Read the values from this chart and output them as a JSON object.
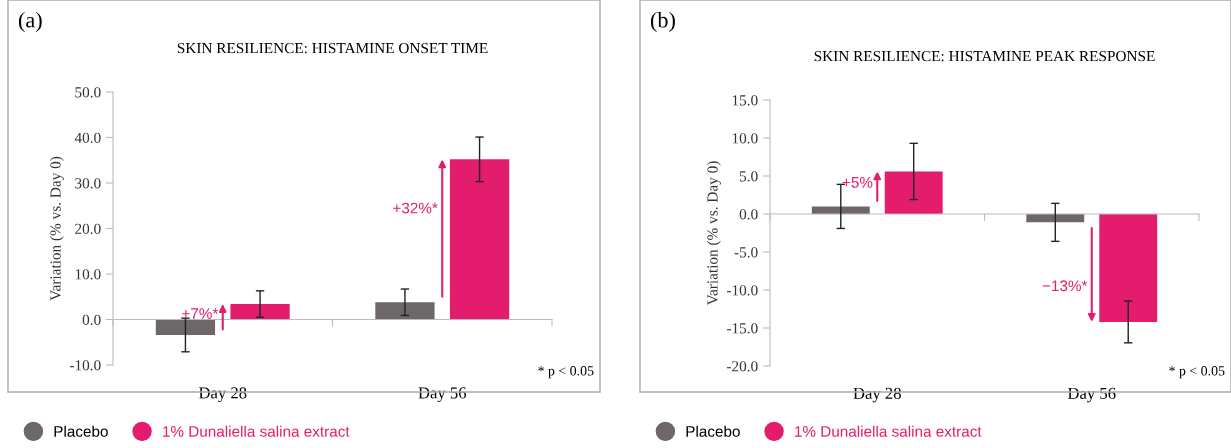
{
  "chart_data": [
    {
      "type": "bar",
      "title": "SKIN RESILIENCE: HISTAMINE ONSET TIME",
      "ylabel": "Variation (% vs. Day 0)",
      "categories": [
        "Day 28",
        "Day 56"
      ],
      "series": [
        {
          "name": "Placebo",
          "color": "#6d6767",
          "values": [
            -3.4,
            3.8
          ],
          "errors": [
            3.7,
            2.9
          ]
        },
        {
          "name": "1% Dunaliella salina extract",
          "color": "#e31c6e",
          "values": [
            3.4,
            35.2
          ],
          "errors": [
            2.9,
            4.9
          ]
        }
      ],
      "ylim": [
        -10,
        50
      ],
      "yticks": [
        {
          "value": -10,
          "label": "-10.0"
        },
        {
          "value": 0,
          "label": "0.0"
        },
        {
          "value": 10,
          "label": "10.0"
        },
        {
          "value": 20,
          "label": "20.0"
        },
        {
          "value": 30,
          "label": "30.0"
        },
        {
          "value": 40,
          "label": "40.0"
        },
        {
          "value": 50,
          "label": "50.0"
        }
      ],
      "annotations": [
        "(a)",
        "+7%*",
        "+32%*",
        "* p < 0.05"
      ],
      "legend": "bottom"
    },
    {
      "type": "bar",
      "title": "SKIN RESILIENCE: HISTAMINE PEAK RESPONSE",
      "ylabel": "Variation (% vs. Day 0)",
      "categories": [
        "Day 28",
        "Day 56"
      ],
      "series": [
        {
          "name": "Placebo",
          "color": "#6d6767",
          "values": [
            1.0,
            -1.1
          ],
          "errors": [
            2.9,
            2.5
          ]
        },
        {
          "name": "1% Dunaliella salina extract",
          "color": "#e31c6e",
          "values": [
            5.6,
            -14.2
          ],
          "errors": [
            3.7,
            2.75
          ]
        }
      ],
      "ylim": [
        -20,
        15
      ],
      "yticks": [
        {
          "value": -20,
          "label": "-20.0"
        },
        {
          "value": -15,
          "label": "-15.0"
        },
        {
          "value": -10,
          "label": "-10.0"
        },
        {
          "value": -5,
          "label": "-5.0"
        },
        {
          "value": 0,
          "label": "0.0"
        },
        {
          "value": 5,
          "label": "5.0"
        },
        {
          "value": 10,
          "label": "10.0"
        },
        {
          "value": 15,
          "label": "15.0"
        }
      ],
      "annotations": [
        "(b)",
        "+5%",
        "−13%*",
        "* p < 0.05"
      ],
      "legend": "bottom"
    }
  ]
}
